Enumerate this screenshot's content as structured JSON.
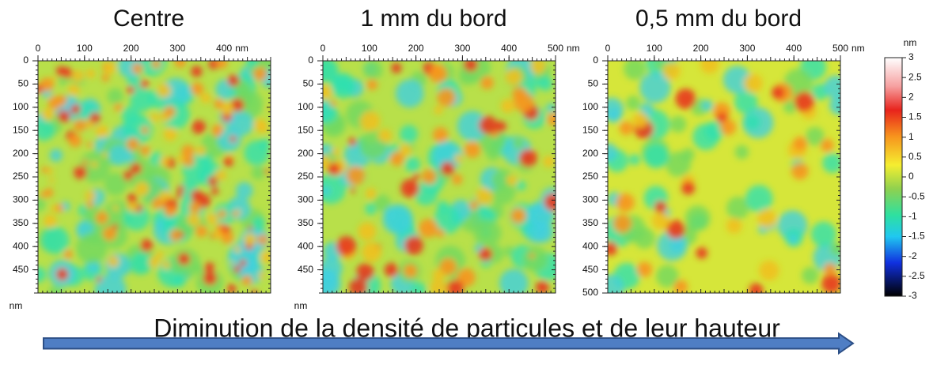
{
  "panels": [
    {
      "title": "Centre",
      "xticks": [
        0,
        100,
        200,
        300,
        400
      ],
      "x_unit": "nm",
      "yticks": [
        0,
        50,
        100,
        150,
        200,
        250,
        300,
        350,
        400,
        450
      ],
      "y_unit": "nm"
    },
    {
      "title": "1 mm du bord",
      "xticks": [
        0,
        100,
        200,
        300,
        400,
        500
      ],
      "x_unit": "nm",
      "yticks": [
        0,
        50,
        100,
        150,
        200,
        250,
        300,
        350,
        400,
        450
      ],
      "y_unit": "nm"
    },
    {
      "title": "0,5 mm du bord",
      "xticks": [
        0,
        100,
        200,
        300,
        400,
        500
      ],
      "x_unit": "nm",
      "yticks": [
        0,
        50,
        100,
        150,
        200,
        250,
        300,
        350,
        400,
        450,
        500
      ]
    }
  ],
  "colorbar": {
    "unit": "nm",
    "ticks": [
      3,
      2.5,
      2,
      1.5,
      1,
      0.5,
      0,
      -0.5,
      -1,
      -1.5,
      -2,
      -2.5,
      -3
    ]
  },
  "caption": "Diminution de la densité de particules et de leur hauteur"
}
